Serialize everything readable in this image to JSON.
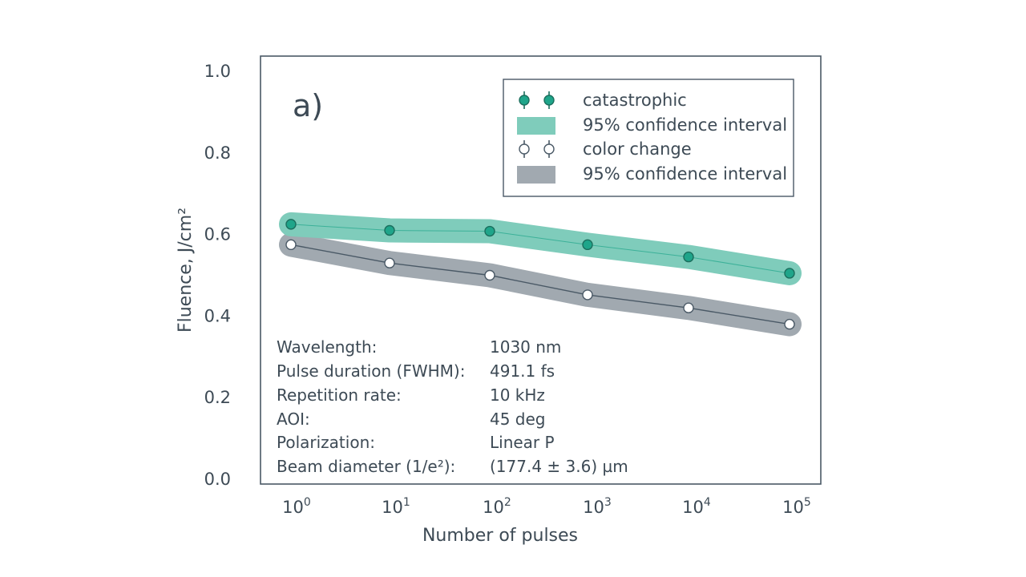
{
  "chart_data": {
    "type": "line",
    "panel_label": "a)",
    "xlabel": "Number of pulses",
    "ylabel": "Fluence, J/cm²",
    "x_scale": "log",
    "x_ticks": [
      {
        "base": "10",
        "exp": "0"
      },
      {
        "base": "10",
        "exp": "1"
      },
      {
        "base": "10",
        "exp": "2"
      },
      {
        "base": "10",
        "exp": "3"
      },
      {
        "base": "10",
        "exp": "4"
      },
      {
        "base": "10",
        "exp": "5"
      }
    ],
    "y_ticks": [
      "0.0",
      "0.2",
      "0.4",
      "0.6",
      "0.8",
      "1.0"
    ],
    "ylim": [
      0,
      1
    ],
    "x": [
      1,
      10,
      100,
      1000,
      10000,
      100000
    ],
    "series": [
      {
        "name": "catastrophic",
        "values": [
          0.625,
          0.61,
          0.608,
          0.575,
          0.545,
          0.505
        ],
        "marker": "filled",
        "color": "#1fa58a",
        "band_color": "#7fccbb",
        "band_name": "95% confidence interval"
      },
      {
        "name": "color change",
        "values": [
          0.575,
          0.53,
          0.5,
          0.452,
          0.42,
          0.38
        ],
        "marker": "open",
        "color": "#4a5966",
        "band_color": "#a1a9b0",
        "band_name": "95% confidence interval"
      }
    ],
    "legend_position": "top-right",
    "legend": [
      {
        "label": "catastrophic",
        "kind": "marker-filled"
      },
      {
        "label": "95% confidence interval",
        "kind": "band-green"
      },
      {
        "label": "color change",
        "kind": "marker-open"
      },
      {
        "label": "95% confidence interval",
        "kind": "band-grey"
      }
    ],
    "parameters": [
      {
        "label": "Wavelength:",
        "value": "1030 nm"
      },
      {
        "label": "Pulse duration (FWHM):",
        "value": "491.1 fs"
      },
      {
        "label": "Repetition rate:",
        "value": "10 kHz"
      },
      {
        "label": "AOI:",
        "value": "45 deg"
      },
      {
        "label": "Polarization:",
        "value": "Linear P"
      },
      {
        "label": "Beam diameter (1/e²):",
        "value": "(177.4 ± 3.6) µm"
      }
    ]
  }
}
